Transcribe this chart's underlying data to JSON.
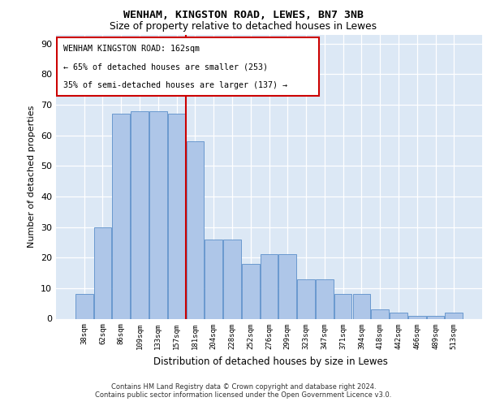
{
  "title1": "WENHAM, KINGSTON ROAD, LEWES, BN7 3NB",
  "title2": "Size of property relative to detached houses in Lewes",
  "xlabel": "Distribution of detached houses by size in Lewes",
  "ylabel": "Number of detached properties",
  "bar_color": "#aec6e8",
  "bar_edge_color": "#5b8fc9",
  "background_color": "#dce8f5",
  "vline_color": "#cc0000",
  "annotation_text_line1": "WENHAM KINGSTON ROAD: 162sqm",
  "annotation_text_line2": "← 65% of detached houses are smaller (253)",
  "annotation_text_line3": "35% of semi-detached houses are larger (137) →",
  "footer1": "Contains HM Land Registry data © Crown copyright and database right 2024.",
  "footer2": "Contains public sector information licensed under the Open Government Licence v3.0.",
  "categories": [
    "38sqm",
    "62sqm",
    "86sqm",
    "109sqm",
    "133sqm",
    "157sqm",
    "181sqm",
    "204sqm",
    "228sqm",
    "252sqm",
    "276sqm",
    "299sqm",
    "323sqm",
    "347sqm",
    "371sqm",
    "394sqm",
    "418sqm",
    "442sqm",
    "466sqm",
    "489sqm",
    "513sqm"
  ],
  "bar_values": [
    8,
    30,
    67,
    68,
    68,
    67,
    58,
    26,
    26,
    18,
    21,
    21,
    13,
    13,
    8,
    8,
    3,
    2,
    1,
    1,
    2
  ],
  "ylim": [
    0,
    93
  ],
  "yticks": [
    0,
    10,
    20,
    30,
    40,
    50,
    60,
    70,
    80,
    90
  ]
}
